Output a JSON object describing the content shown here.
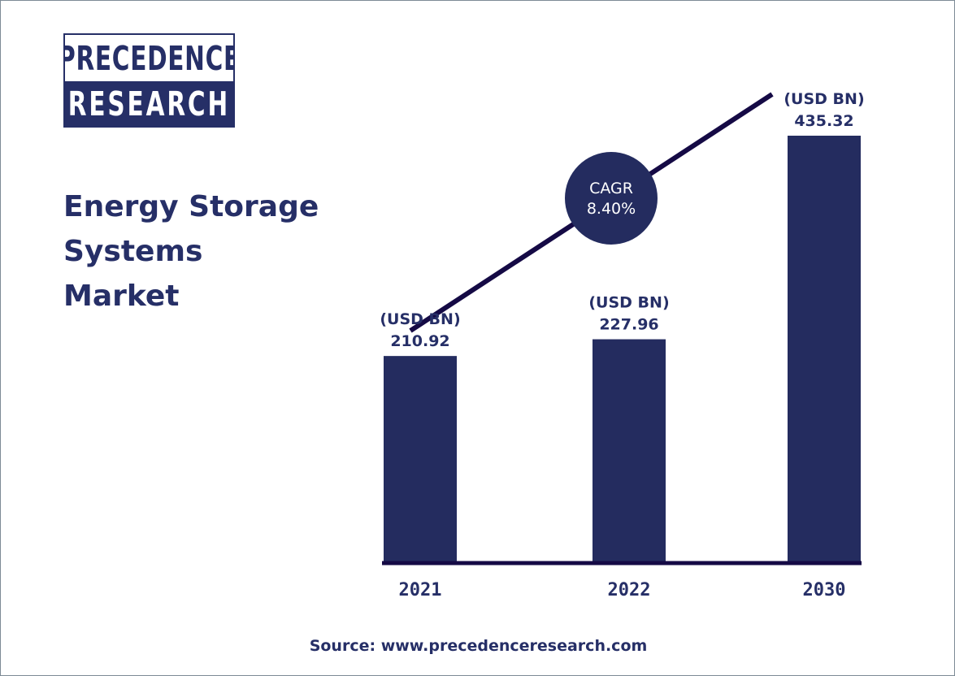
{
  "logo": {
    "line1": "PRECEDENCE",
    "line2": "RESEARCH"
  },
  "title": {
    "line1": "Energy Storage",
    "line2": "Systems",
    "line3": "Market"
  },
  "cagr": {
    "label": "CAGR",
    "value": "8.40%"
  },
  "source": {
    "label": "Source:",
    "url": "www.precedenceresearch.com"
  },
  "colors": {
    "bar": "#242c5f",
    "text": "#262f67",
    "axis": "#150a45",
    "trend_line": "#150a45",
    "background": "#ffffff",
    "border": "#7d8b96"
  },
  "chart_data": {
    "type": "bar",
    "categories": [
      "2021",
      "2022",
      "2030"
    ],
    "values": [
      210.92,
      227.96,
      435.32
    ],
    "value_labels": [
      "210.92",
      "227.96",
      "435.32"
    ],
    "unit_label": "(USD BN)",
    "title": "Energy Storage Systems Market",
    "xlabel": "",
    "ylabel": "",
    "ylim": [
      0,
      435.32
    ],
    "grid": false,
    "legend": "none",
    "annotations": [
      {
        "text": "CAGR 8.40%",
        "type": "trend-line-badge"
      }
    ]
  }
}
